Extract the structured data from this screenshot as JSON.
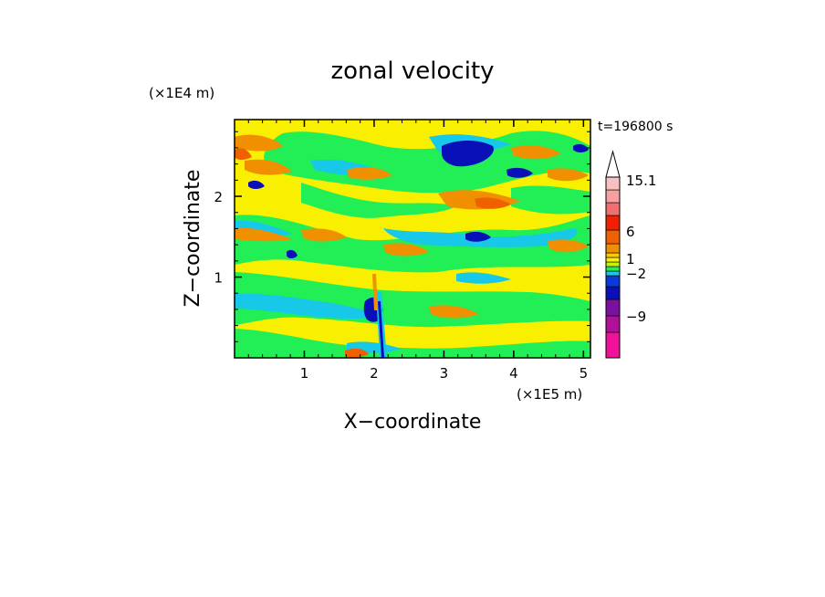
{
  "chart_data": {
    "type": "heatmap",
    "title": "zonal velocity",
    "xlabel": "X−coordinate",
    "ylabel": "Z−coordinate",
    "x_unit": "(×1E5 m)",
    "y_unit": "(×1E4 m)",
    "time_label": "t=196800 s",
    "xlim": [
      0,
      5.1
    ],
    "ylim": [
      0,
      2.95
    ],
    "x_ticks": [
      "1",
      "2",
      "3",
      "4",
      "5"
    ],
    "x_tick_values": [
      1,
      2,
      3,
      4,
      5
    ],
    "y_ticks": [
      "1",
      "2"
    ],
    "y_tick_values": [
      1,
      2
    ],
    "colorbar": {
      "labels": [
        "15.1",
        "6",
        "1",
        "−2",
        "−9"
      ],
      "colors": [
        "#f0109a",
        "#b0109a",
        "#7a10a0",
        "#0a10b8",
        "#0a3ad8",
        "#17c8e8",
        "#22ee55",
        "#c8f00a",
        "#f8f000",
        "#f8cc00",
        "#f09000",
        "#f06000",
        "#f02000",
        "#f07070",
        "#f8a0a0",
        "#f8c0c0"
      ]
    },
    "grid": false,
    "legend_position": "right"
  }
}
